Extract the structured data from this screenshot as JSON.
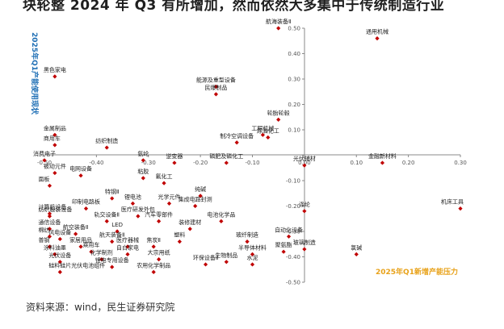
{
  "header": {
    "title": "块轮整 2024 年 Q3 有所增加，然而依然大多集中于传统制造行业"
  },
  "source": {
    "text": "资料来源：wind，民生证券研究院"
  },
  "chart_data": {
    "type": "scatter",
    "title": "",
    "xlabel": "2025年Q1新增产能压力",
    "ylabel": "2025年Q1产能使用现状",
    "xlim": [
      -0.5,
      0.3
    ],
    "ylim": [
      -0.5,
      0.5
    ],
    "xticks": [
      -0.5,
      -0.4,
      -0.3,
      -0.2,
      -0.1,
      0.0,
      0.1,
      0.2,
      0.3
    ],
    "yticks": [
      -0.5,
      -0.4,
      -0.3,
      -0.2,
      -0.1,
      0.0,
      0.1,
      0.2,
      0.3,
      0.4,
      0.5
    ],
    "xtick_labels": [
      "-0.50",
      "-0.40",
      "-0.30",
      "-0.20",
      "-0.10",
      "0.00",
      "0.10",
      "0.20",
      "0.30"
    ],
    "ytick_labels": [
      "-0.50",
      "-0.40",
      "-0.30",
      "-0.20",
      "-0.10",
      "0.00",
      "0.10",
      "0.20",
      "0.30",
      "0.40",
      "0.50"
    ],
    "marker_color": "#c00000",
    "points": [
      {
        "label": "航海装备Ⅱ",
        "x": -0.05,
        "y": 0.5
      },
      {
        "label": "通用机械",
        "x": 0.14,
        "y": 0.46
      },
      {
        "label": "黑色家电",
        "x": -0.48,
        "y": 0.31
      },
      {
        "label": "能源及重型设备",
        "x": -0.17,
        "y": 0.27
      },
      {
        "label": "民爆制品",
        "x": -0.17,
        "y": 0.24
      },
      {
        "label": "轮胎轮毂",
        "x": -0.05,
        "y": 0.14
      },
      {
        "label": "金属制品",
        "x": -0.48,
        "y": 0.08
      },
      {
        "label": "工程机械",
        "x": -0.08,
        "y": 0.08
      },
      {
        "label": "制冷空调设备",
        "x": -0.13,
        "y": 0.05
      },
      {
        "label": "炼油化工",
        "x": -0.07,
        "y": 0.07
      },
      {
        "label": "纺织制造",
        "x": -0.38,
        "y": 0.03
      },
      {
        "label": "商用车",
        "x": -0.48,
        "y": 0.04
      },
      {
        "label": "消费电子",
        "x": -0.5,
        "y": -0.02
      },
      {
        "label": "氨纶",
        "x": -0.31,
        "y": -0.02
      },
      {
        "label": "逆变器",
        "x": -0.25,
        "y": -0.03
      },
      {
        "label": "磷肥及磷化工",
        "x": -0.15,
        "y": -0.03
      },
      {
        "label": "光伏辅材",
        "x": 0.0,
        "y": -0.04
      },
      {
        "label": "金融新材料",
        "x": 0.15,
        "y": -0.03
      },
      {
        "label": "被动元件",
        "x": -0.48,
        "y": -0.07
      },
      {
        "label": "电网设备",
        "x": -0.43,
        "y": -0.08
      },
      {
        "label": "粘胶",
        "x": -0.31,
        "y": -0.09
      },
      {
        "label": "氟化工",
        "x": -0.27,
        "y": -0.11
      },
      {
        "label": "面板",
        "x": -0.49,
        "y": -0.12
      },
      {
        "label": "特钢Ⅱ",
        "x": -0.37,
        "y": -0.17
      },
      {
        "label": "锂电池",
        "x": -0.33,
        "y": -0.19
      },
      {
        "label": "光学元件",
        "x": -0.26,
        "y": -0.19
      },
      {
        "label": "纯碱",
        "x": -0.2,
        "y": -0.16
      },
      {
        "label": "集成电路封测",
        "x": -0.21,
        "y": -0.2
      },
      {
        "label": "机床工具",
        "x": 0.3,
        "y": -0.21
      },
      {
        "label": "计算机设备",
        "x": -0.49,
        "y": -0.23
      },
      {
        "label": "印制电路板",
        "x": -0.42,
        "y": -0.21
      },
      {
        "label": "医疗研发外包",
        "x": -0.32,
        "y": -0.24
      },
      {
        "label": "涤纶",
        "x": 0.0,
        "y": -0.22
      },
      {
        "label": "纺织服装设备",
        "x": -0.49,
        "y": -0.24
      },
      {
        "label": "轨交设备Ⅱ",
        "x": -0.38,
        "y": -0.26
      },
      {
        "label": "汽车零部件",
        "x": -0.28,
        "y": -0.26
      },
      {
        "label": "电池化学品",
        "x": -0.16,
        "y": -0.26
      },
      {
        "label": "通信设备",
        "x": -0.49,
        "y": -0.29
      },
      {
        "label": "航空装备Ⅱ",
        "x": -0.44,
        "y": -0.31
      },
      {
        "label": "LED",
        "x": -0.36,
        "y": -0.3
      },
      {
        "label": "装修建材",
        "x": -0.22,
        "y": -0.29
      },
      {
        "label": "自动化设备",
        "x": -0.03,
        "y": -0.32
      },
      {
        "label": "棉纺",
        "x": -0.49,
        "y": -0.32
      },
      {
        "label": "风电设备",
        "x": -0.47,
        "y": -0.33
      },
      {
        "label": "航天装备Ⅱ",
        "x": -0.37,
        "y": -0.34
      },
      {
        "label": "塑料",
        "x": -0.24,
        "y": -0.34
      },
      {
        "label": "玻纤制造",
        "x": -0.11,
        "y": -0.34
      },
      {
        "label": "玻璃制造",
        "x": 0.0,
        "y": -0.37
      },
      {
        "label": "普钢",
        "x": -0.49,
        "y": -0.36
      },
      {
        "label": "家居用品",
        "x": -0.43,
        "y": -0.36
      },
      {
        "label": "医疗器械",
        "x": -0.34,
        "y": -0.36
      },
      {
        "label": "焦炭Ⅱ",
        "x": -0.29,
        "y": -0.36
      },
      {
        "label": "乘用车",
        "x": -0.41,
        "y": -0.38
      },
      {
        "label": "聚氨酯",
        "x": -0.04,
        "y": -0.38
      },
      {
        "label": "涂料油墨",
        "x": -0.48,
        "y": -0.39
      },
      {
        "label": "自白家电",
        "x": -0.34,
        "y": -0.39
      },
      {
        "label": "半导体材料",
        "x": -0.1,
        "y": -0.39
      },
      {
        "label": "氯碱",
        "x": 0.1,
        "y": -0.39
      },
      {
        "label": "光伏设备",
        "x": -0.47,
        "y": -0.42
      },
      {
        "label": "化学制剂",
        "x": -0.39,
        "y": -0.41
      },
      {
        "label": "大宗用纸",
        "x": -0.28,
        "y": -0.41
      },
      {
        "label": "环保设备Ⅱ",
        "x": -0.19,
        "y": -0.43
      },
      {
        "label": "生物制品",
        "x": -0.15,
        "y": -0.42
      },
      {
        "label": "水泥",
        "x": -0.1,
        "y": -0.43
      },
      {
        "label": "锂电专用设备",
        "x": -0.37,
        "y": -0.44
      },
      {
        "label": "硅料硅片光伏电池组件",
        "x": -0.47,
        "y": -0.46
      },
      {
        "label": "农用化学制品",
        "x": -0.29,
        "y": -0.46
      }
    ]
  }
}
